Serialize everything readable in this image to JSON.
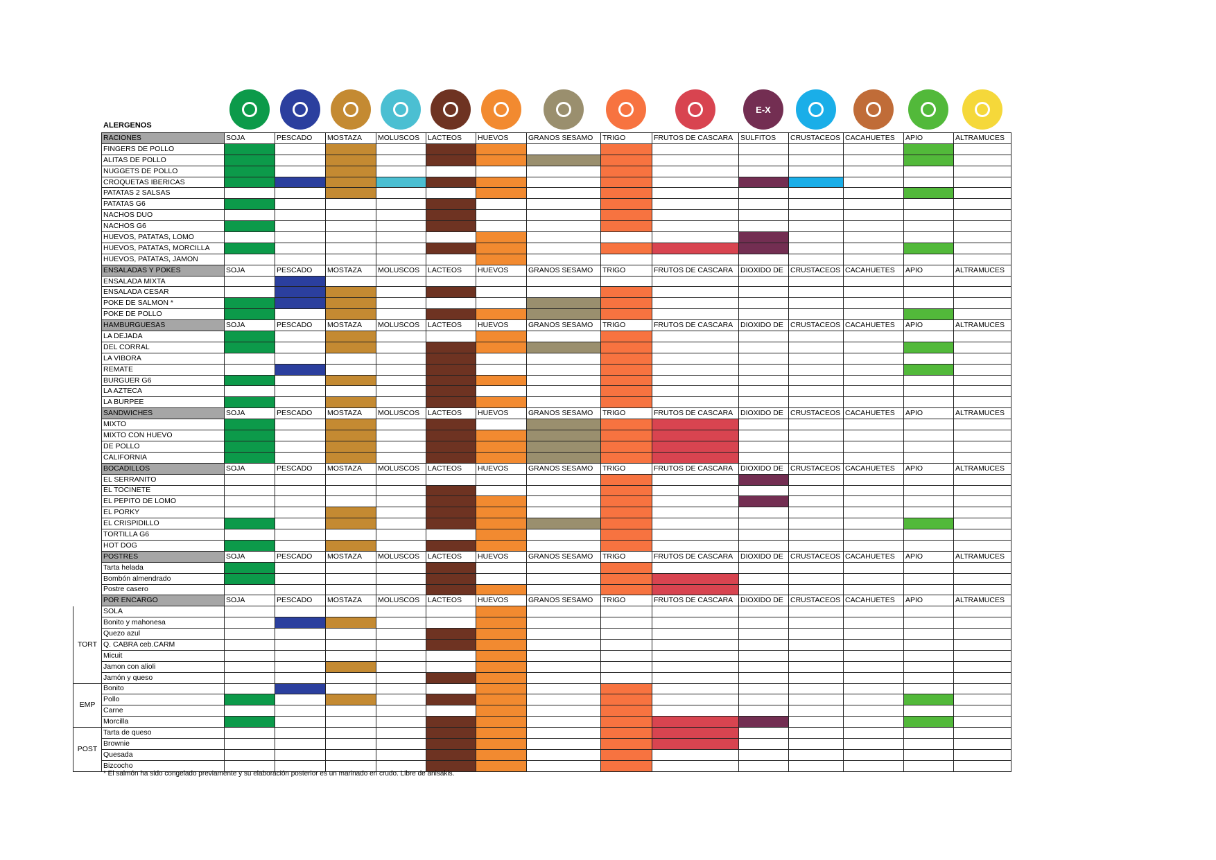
{
  "title": "ALERGENOS",
  "allergens": [
    {
      "key": "soja",
      "label": "SOJA",
      "color": "#0c9a4a",
      "icon": "soy-plant-icon"
    },
    {
      "key": "pescado",
      "label": "PESCADO",
      "color": "#2b3f9e",
      "icon": "fish-icon"
    },
    {
      "key": "mostaza",
      "label": "MOSTAZA",
      "color": "#c48a32",
      "icon": "mustard-icon"
    },
    {
      "key": "moluscos",
      "label": "MOLUSCOS",
      "color": "#4bbfd2",
      "icon": "shell-icon"
    },
    {
      "key": "lacteos",
      "label": "LACTEOS",
      "color": "#6e3322",
      "icon": "milk-jug-icon"
    },
    {
      "key": "huevos",
      "label": "HUEVOS",
      "color": "#f28a30",
      "icon": "eggs-icon"
    },
    {
      "key": "sesamo",
      "label": "GRANOS SESAMO",
      "color": "#9a8f6e",
      "icon": "sesame-icon"
    },
    {
      "key": "trigo",
      "label": "TRIGO",
      "color": "#f77340",
      "icon": "wheat-icon"
    },
    {
      "key": "frutos",
      "label": "FRUTOS DE CASCARA",
      "color": "#d84450",
      "icon": "nut-icon"
    },
    {
      "key": "sulfitos",
      "label": "SULFITOS",
      "alt_label": "DIOXIDO DE",
      "color": "#732e52",
      "icon": "sulfites-icon",
      "icon_text": "E-X"
    },
    {
      "key": "crustaceos",
      "label": "CRUSTACEOS",
      "color": "#1aaee8",
      "icon": "crab-icon"
    },
    {
      "key": "cacahuetes",
      "label": "CACAHUETES",
      "color": "#c06c38",
      "icon": "peanut-icon"
    },
    {
      "key": "apio",
      "label": "APIO",
      "color": "#52b93a",
      "icon": "celery-icon"
    },
    {
      "key": "altramuces",
      "label": "ALTRAMUCES",
      "color": "#f5d83a",
      "icon": "lupin-icon"
    }
  ],
  "sections": [
    {
      "name": "RACIONES",
      "use_alt_label": false,
      "rows": [
        {
          "name": "FINGERS DE POLLO",
          "a": [
            1,
            0,
            1,
            0,
            1,
            1,
            0,
            1,
            0,
            0,
            0,
            0,
            1,
            0
          ]
        },
        {
          "name": "ALITAS DE POLLO",
          "a": [
            1,
            0,
            1,
            0,
            1,
            1,
            1,
            1,
            0,
            0,
            0,
            0,
            1,
            0
          ]
        },
        {
          "name": "NUGGETS DE POLLO",
          "a": [
            1,
            0,
            1,
            0,
            0,
            0,
            0,
            1,
            0,
            0,
            0,
            0,
            0,
            0
          ]
        },
        {
          "name": "CROQUETAS IBERICAS",
          "a": [
            1,
            1,
            1,
            1,
            1,
            1,
            0,
            1,
            0,
            1,
            1,
            0,
            0,
            0
          ]
        },
        {
          "name": "PATATAS 2 SALSAS",
          "a": [
            0,
            0,
            1,
            0,
            0,
            1,
            0,
            1,
            0,
            0,
            0,
            0,
            1,
            0
          ]
        },
        {
          "name": "PATATAS G6",
          "a": [
            1,
            0,
            0,
            0,
            1,
            0,
            0,
            1,
            0,
            0,
            0,
            0,
            0,
            0
          ]
        },
        {
          "name": "NACHOS DUO",
          "a": [
            0,
            0,
            0,
            0,
            1,
            0,
            0,
            1,
            0,
            0,
            0,
            0,
            0,
            0
          ]
        },
        {
          "name": "NACHOS G6",
          "a": [
            1,
            0,
            0,
            0,
            1,
            0,
            0,
            1,
            0,
            0,
            0,
            0,
            0,
            0
          ]
        },
        {
          "name": "HUEVOS, PATATAS, LOMO",
          "a": [
            0,
            0,
            0,
            0,
            0,
            1,
            0,
            0,
            0,
            1,
            0,
            0,
            0,
            0
          ]
        },
        {
          "name": "HUEVOS, PATATAS, MORCILLA",
          "a": [
            1,
            0,
            0,
            0,
            1,
            1,
            0,
            1,
            1,
            1,
            0,
            0,
            1,
            0
          ]
        },
        {
          "name": "HUEVOS, PATATAS, JAMON",
          "a": [
            0,
            0,
            0,
            0,
            0,
            1,
            0,
            0,
            0,
            0,
            0,
            0,
            0,
            0
          ]
        }
      ]
    },
    {
      "name": "ENSALADAS Y POKES",
      "use_alt_label": true,
      "rows": [
        {
          "name": "ENSALADA MIXTA",
          "a": [
            0,
            1,
            0,
            0,
            0,
            0,
            0,
            0,
            0,
            0,
            0,
            0,
            0,
            0
          ]
        },
        {
          "name": "ENSALADA CESAR",
          "a": [
            0,
            1,
            1,
            0,
            1,
            0,
            0,
            1,
            0,
            0,
            0,
            0,
            0,
            0
          ]
        },
        {
          "name": "POKE DE SALMON *",
          "a": [
            1,
            1,
            1,
            0,
            0,
            0,
            1,
            1,
            0,
            0,
            0,
            0,
            0,
            0
          ]
        },
        {
          "name": "POKE DE POLLO",
          "a": [
            1,
            0,
            1,
            0,
            1,
            1,
            1,
            1,
            0,
            0,
            0,
            0,
            1,
            0
          ]
        }
      ]
    },
    {
      "name": "HAMBURGUESAS",
      "use_alt_label": true,
      "rows": [
        {
          "name": "LA DEJADA",
          "a": [
            1,
            0,
            1,
            0,
            0,
            1,
            0,
            1,
            0,
            0,
            0,
            0,
            0,
            0
          ]
        },
        {
          "name": "DEL CORRAL",
          "a": [
            1,
            0,
            1,
            0,
            1,
            1,
            1,
            1,
            0,
            0,
            0,
            0,
            1,
            0
          ]
        },
        {
          "name": "LA VIBORA",
          "a": [
            0,
            0,
            0,
            0,
            1,
            0,
            0,
            1,
            0,
            0,
            0,
            0,
            0,
            0
          ]
        },
        {
          "name": "REMATE",
          "a": [
            0,
            1,
            0,
            0,
            1,
            0,
            0,
            1,
            0,
            0,
            0,
            0,
            1,
            0
          ]
        },
        {
          "name": "BURGUER G6",
          "a": [
            1,
            0,
            1,
            0,
            1,
            1,
            0,
            1,
            0,
            0,
            0,
            0,
            0,
            0
          ]
        },
        {
          "name": "LA AZTECA",
          "a": [
            0,
            0,
            0,
            0,
            1,
            0,
            0,
            1,
            0,
            0,
            0,
            0,
            0,
            0
          ]
        },
        {
          "name": "LA BURPEE",
          "a": [
            1,
            0,
            1,
            0,
            1,
            1,
            0,
            1,
            0,
            0,
            0,
            0,
            0,
            0
          ]
        }
      ]
    },
    {
      "name": "SANDWICHES",
      "use_alt_label": true,
      "rows": [
        {
          "name": "MIXTO",
          "a": [
            1,
            0,
            1,
            0,
            1,
            0,
            1,
            1,
            1,
            0,
            0,
            0,
            0,
            0
          ]
        },
        {
          "name": "MIXTO CON HUEVO",
          "a": [
            1,
            0,
            1,
            0,
            1,
            1,
            1,
            1,
            1,
            0,
            0,
            0,
            0,
            0
          ]
        },
        {
          "name": "DE POLLO",
          "a": [
            1,
            0,
            1,
            0,
            1,
            1,
            1,
            1,
            1,
            0,
            0,
            0,
            0,
            0
          ]
        },
        {
          "name": "CALIFORNIA",
          "a": [
            1,
            0,
            1,
            0,
            1,
            1,
            1,
            1,
            1,
            0,
            0,
            0,
            0,
            0
          ]
        }
      ]
    },
    {
      "name": "BOCADILLOS",
      "use_alt_label": true,
      "rows": [
        {
          "name": "EL SERRANITO",
          "a": [
            0,
            0,
            0,
            0,
            0,
            0,
            0,
            1,
            0,
            1,
            0,
            0,
            0,
            0
          ]
        },
        {
          "name": "EL TOCINETE",
          "a": [
            0,
            0,
            0,
            0,
            1,
            0,
            0,
            1,
            0,
            0,
            0,
            0,
            0,
            0
          ]
        },
        {
          "name": "EL PEPITO DE LOMO",
          "a": [
            0,
            0,
            0,
            0,
            1,
            1,
            0,
            1,
            0,
            1,
            0,
            0,
            0,
            0
          ]
        },
        {
          "name": "EL PORKY",
          "a": [
            0,
            0,
            1,
            0,
            1,
            1,
            0,
            1,
            0,
            0,
            0,
            0,
            0,
            0
          ]
        },
        {
          "name": "EL CRISPIDILLO",
          "a": [
            1,
            0,
            1,
            0,
            1,
            1,
            1,
            1,
            0,
            0,
            0,
            0,
            1,
            0
          ]
        },
        {
          "name": "TORTILLA G6",
          "a": [
            0,
            0,
            0,
            0,
            0,
            1,
            0,
            1,
            0,
            0,
            0,
            0,
            0,
            0
          ]
        },
        {
          "name": "HOT DOG",
          "a": [
            1,
            0,
            1,
            0,
            1,
            1,
            0,
            1,
            0,
            0,
            0,
            0,
            0,
            0
          ]
        }
      ]
    },
    {
      "name": "POSTRES",
      "use_alt_label": true,
      "rows": [
        {
          "name": "Tarta helada",
          "a": [
            1,
            0,
            0,
            0,
            1,
            0,
            0,
            1,
            0,
            0,
            0,
            0,
            0,
            0
          ]
        },
        {
          "name": "Bombón almendrado",
          "a": [
            1,
            0,
            0,
            0,
            1,
            0,
            0,
            1,
            1,
            0,
            0,
            0,
            0,
            0
          ]
        },
        {
          "name": "Postre casero",
          "a": [
            0,
            0,
            0,
            0,
            1,
            1,
            0,
            1,
            1,
            0,
            0,
            0,
            0,
            0
          ]
        }
      ]
    },
    {
      "name": "POR ENCARGO",
      "use_alt_label": true,
      "rows": [
        {
          "group": "TORT",
          "name": "SOLA",
          "a": [
            0,
            0,
            0,
            0,
            0,
            1,
            0,
            0,
            0,
            0,
            0,
            0,
            0,
            0
          ]
        },
        {
          "group": "TORT",
          "name": "Bonito y mahonesa",
          "a": [
            0,
            1,
            1,
            0,
            0,
            1,
            0,
            0,
            0,
            0,
            0,
            0,
            0,
            0
          ]
        },
        {
          "group": "TORT",
          "name": "Quezo azul",
          "a": [
            0,
            0,
            0,
            0,
            1,
            1,
            0,
            0,
            0,
            0,
            0,
            0,
            0,
            0
          ]
        },
        {
          "group": "TORT",
          "name": "Q. CABRA ceb.CARM",
          "a": [
            0,
            0,
            0,
            0,
            1,
            1,
            0,
            0,
            0,
            0,
            0,
            0,
            0,
            0
          ]
        },
        {
          "group": "TORT",
          "name": "Micuit",
          "a": [
            0,
            0,
            0,
            0,
            0,
            1,
            0,
            0,
            0,
            0,
            0,
            0,
            0,
            0
          ]
        },
        {
          "group": "TORT",
          "name": "Jamon con alioli",
          "a": [
            0,
            0,
            1,
            0,
            0,
            1,
            0,
            0,
            0,
            0,
            0,
            0,
            0,
            0
          ]
        },
        {
          "group": "TORT",
          "name": "Jamón y queso",
          "a": [
            0,
            0,
            0,
            0,
            1,
            1,
            0,
            0,
            0,
            0,
            0,
            0,
            0,
            0
          ]
        },
        {
          "group": "EMP",
          "name": "Bonito",
          "a": [
            0,
            1,
            0,
            0,
            0,
            1,
            0,
            1,
            0,
            0,
            0,
            0,
            0,
            0
          ]
        },
        {
          "group": "EMP",
          "name": "Pollo",
          "a": [
            1,
            0,
            1,
            0,
            1,
            1,
            0,
            1,
            0,
            0,
            0,
            0,
            1,
            0
          ]
        },
        {
          "group": "EMP",
          "name": "Carne",
          "a": [
            0,
            0,
            0,
            0,
            0,
            1,
            0,
            1,
            0,
            0,
            0,
            0,
            0,
            0
          ]
        },
        {
          "group": "EMP",
          "name": "Morcilla",
          "a": [
            1,
            0,
            0,
            0,
            1,
            1,
            0,
            1,
            1,
            1,
            0,
            0,
            1,
            0
          ]
        },
        {
          "group": "POST",
          "name": "Tarta de queso",
          "a": [
            0,
            0,
            0,
            0,
            1,
            1,
            0,
            1,
            1,
            0,
            0,
            0,
            0,
            0
          ]
        },
        {
          "group": "POST",
          "name": "Brownie",
          "a": [
            0,
            0,
            0,
            0,
            1,
            1,
            0,
            1,
            1,
            0,
            0,
            0,
            0,
            0
          ]
        },
        {
          "group": "POST",
          "name": "Quesada",
          "a": [
            0,
            0,
            0,
            0,
            1,
            1,
            0,
            1,
            0,
            0,
            0,
            0,
            0,
            0
          ]
        },
        {
          "group": "POST",
          "name": "Bizcocho",
          "a": [
            0,
            0,
            0,
            0,
            1,
            1,
            0,
            1,
            0,
            0,
            0,
            0,
            0,
            0
          ]
        }
      ]
    }
  ],
  "footnote": "* El salmón ha sido congelado previamente y su elaboración posterior es un marinado en crudo. Libre de anisakis."
}
